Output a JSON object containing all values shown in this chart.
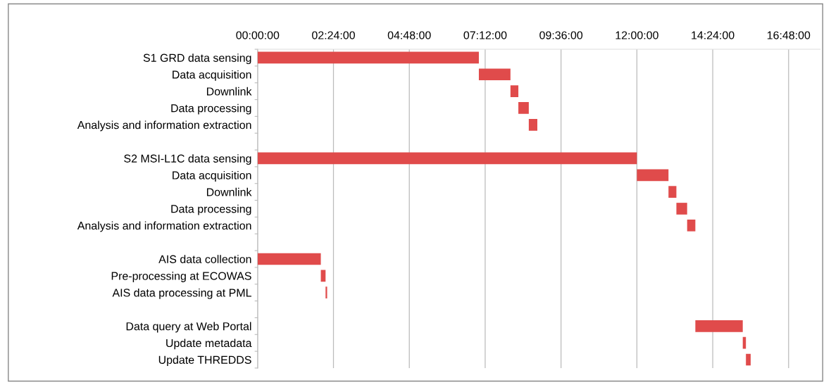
{
  "chart_data": {
    "type": "bar",
    "orientation": "horizontal",
    "categories": [
      "S1 GRD data sensing",
      "Data acquisition",
      "Downlink",
      "Data processing",
      "Analysis and information extraction",
      null,
      "S2 MSI-L1C data sensing",
      "Data acquisition",
      "Downlink",
      "Data processing",
      "Analysis and information extraction",
      null,
      "AIS data collection",
      "Pre-processing at ECOWAS",
      "AIS data processing at PML",
      null,
      "Data query at Web Portal",
      "Update metadata",
      "Update THREDDS"
    ],
    "base": [
      0,
      7.0,
      8.0,
      8.25,
      8.58,
      null,
      0,
      12.0,
      13.0,
      13.25,
      13.59,
      null,
      0,
      2.0,
      2.15,
      null,
      13.85,
      15.35,
      15.45
    ],
    "values": [
      7.0,
      1.0,
      0.25,
      0.33,
      0.27,
      null,
      12.0,
      1.0,
      0.25,
      0.34,
      0.26,
      null,
      2.0,
      0.15,
      0.05,
      null,
      1.5,
      0.1,
      0.15
    ],
    "color": "#e04b4b",
    "xlim": [
      0,
      17.8
    ],
    "xticks": [
      {
        "value": 0,
        "label": "00:00:00"
      },
      {
        "value": 2.4,
        "label": "02:24:00"
      },
      {
        "value": 4.8,
        "label": "04:48:00"
      },
      {
        "value": 7.2,
        "label": "07:12:00"
      },
      {
        "value": 9.6,
        "label": "09:36:00"
      },
      {
        "value": 12,
        "label": "12:00:00"
      },
      {
        "value": 14.4,
        "label": "14:24:00"
      },
      {
        "value": 16.8,
        "label": "16:48:00"
      }
    ],
    "grid": "x"
  }
}
